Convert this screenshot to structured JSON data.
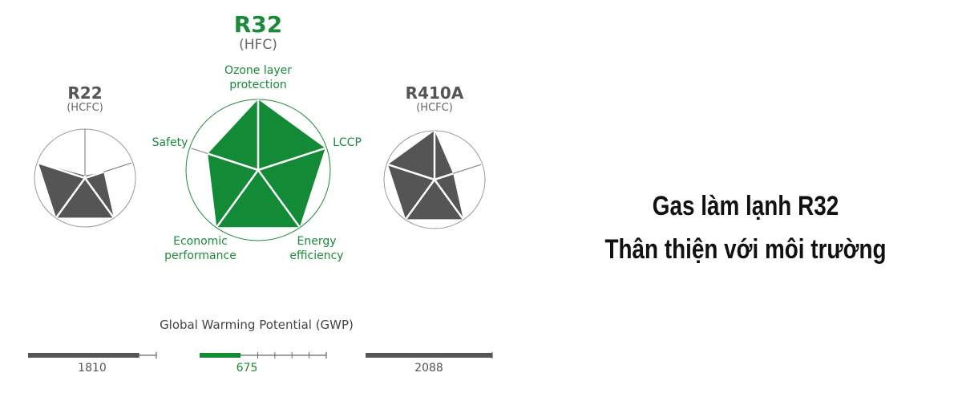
{
  "chart_data": {
    "type": "radar",
    "axes": [
      "Ozone layer protection",
      "LCCP",
      "Energy efficiency",
      "Economic performance",
      "Safety"
    ],
    "axis_labels": {
      "ozone": "Ozone layer\nprotection",
      "ozone_1": "Ozone layer",
      "ozone_2": "protection",
      "lccp": "LCCP",
      "energy_1": "Energy",
      "energy_2": "efficiency",
      "economic_1": "Economic",
      "economic_2": "performance",
      "safety": "Safety"
    },
    "range": [
      0,
      1
    ],
    "series": [
      {
        "name": "R22",
        "type_label": "(HCFC)",
        "values": [
          0.05,
          0.4,
          1,
          1,
          1
        ],
        "color": "#555555"
      },
      {
        "name": "R32",
        "type_label": "(HFC)",
        "values": [
          1,
          1,
          1,
          1,
          0.75
        ],
        "color": "#138a36"
      },
      {
        "name": "R410A",
        "type_label": "(HCFC)",
        "values": [
          1,
          0.4,
          1,
          1,
          1
        ],
        "color": "#555555"
      }
    ],
    "gwp": {
      "title": "Global Warming Potential (GWP)",
      "max": 2088,
      "items": [
        {
          "name": "R22",
          "value": 1810,
          "label": "1810"
        },
        {
          "name": "R32",
          "value": 675,
          "label": "675"
        },
        {
          "name": "R410A",
          "value": 2088,
          "label": "2088"
        }
      ]
    }
  },
  "caption": {
    "line1": "Gas làm lạnh R32",
    "line2": "Thân thiện với môi trường"
  }
}
